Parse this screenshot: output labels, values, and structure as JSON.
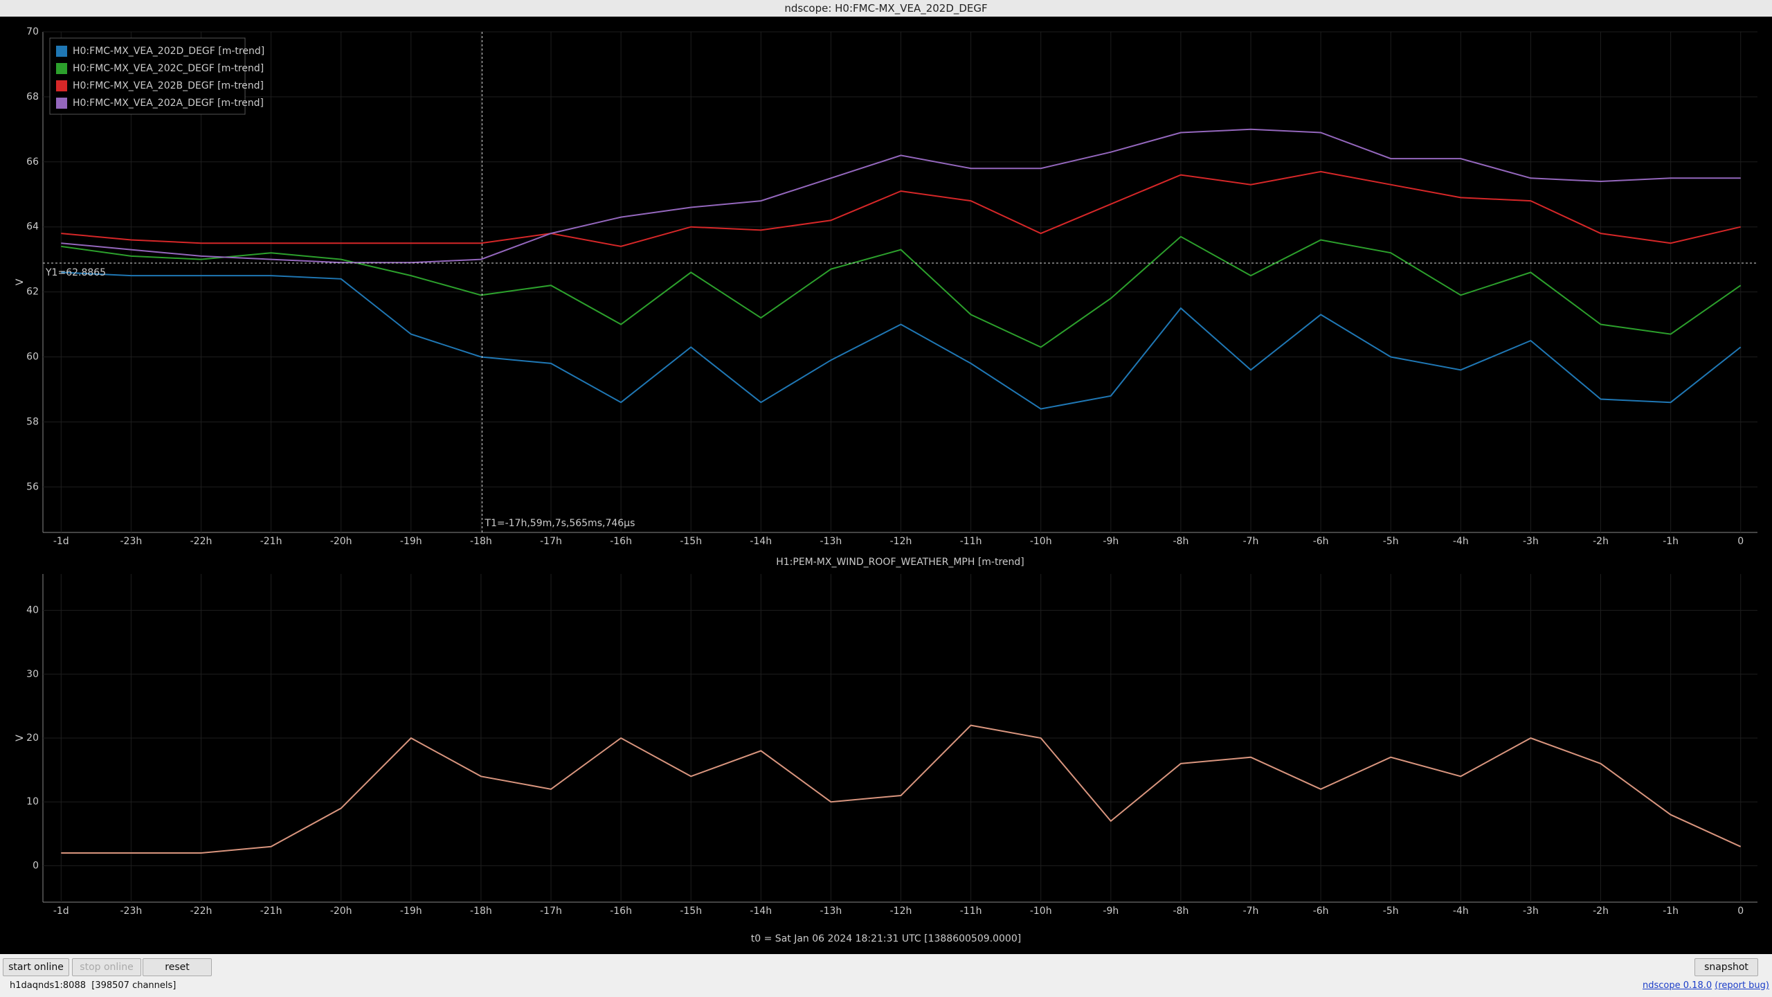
{
  "window_title": "ndscope: H0:FMC-MX_VEA_202D_DEGF",
  "chart_data": [
    {
      "type": "line",
      "ylabel": "V",
      "grid": true,
      "legend": "upper left",
      "x": [
        -24,
        -23,
        -22,
        -21,
        -20,
        -19,
        -18,
        -17,
        -16,
        -15,
        -14,
        -13,
        -12,
        -11,
        -10,
        -9,
        -8,
        -7,
        -6,
        -5,
        -4,
        -3,
        -2,
        -1,
        0
      ],
      "xlim": [
        -24.26,
        0.24
      ],
      "xticks": [
        {
          "value": -24,
          "label": "-1d"
        },
        {
          "value": -23,
          "label": "-23h"
        },
        {
          "value": -22,
          "label": "-22h"
        },
        {
          "value": -21,
          "label": "-21h"
        },
        {
          "value": -20,
          "label": "-20h"
        },
        {
          "value": -19,
          "label": "-19h"
        },
        {
          "value": -18,
          "label": "-18h"
        },
        {
          "value": -17,
          "label": "-17h"
        },
        {
          "value": -16,
          "label": "-16h"
        },
        {
          "value": -15,
          "label": "-15h"
        },
        {
          "value": -14,
          "label": "-14h"
        },
        {
          "value": -13,
          "label": "-13h"
        },
        {
          "value": -12,
          "label": "-12h"
        },
        {
          "value": -11,
          "label": "-11h"
        },
        {
          "value": -10,
          "label": "-10h"
        },
        {
          "value": -9,
          "label": "-9h"
        },
        {
          "value": -8,
          "label": "-8h"
        },
        {
          "value": -7,
          "label": "-7h"
        },
        {
          "value": -6,
          "label": "-6h"
        },
        {
          "value": -5,
          "label": "-5h"
        },
        {
          "value": -4,
          "label": "-4h"
        },
        {
          "value": -3,
          "label": "-3h"
        },
        {
          "value": -2,
          "label": "-2h"
        },
        {
          "value": -1,
          "label": "-1h"
        },
        0
      ],
      "ylim": [
        54.6,
        70
      ],
      "yticks": [
        56,
        58,
        60,
        62,
        64,
        66,
        68,
        70
      ],
      "cursors": {
        "t1": {
          "value": -17.985,
          "label": "T1=-17h,59m,7s,565ms,746μs"
        },
        "y1": {
          "value": 62.8865,
          "label": "Y1=62.8865"
        }
      },
      "series": [
        {
          "name": "H0:FMC-MX_VEA_202D_DEGF [m-trend]",
          "color": "#1f77b4",
          "values": [
            62.6,
            62.5,
            62.5,
            62.5,
            62.4,
            60.7,
            60.0,
            59.8,
            58.6,
            60.3,
            58.6,
            59.9,
            61.0,
            59.8,
            58.4,
            58.8,
            61.5,
            59.6,
            61.3,
            60.0,
            59.6,
            60.5,
            58.7,
            58.6,
            60.3
          ]
        },
        {
          "name": "H0:FMC-MX_VEA_202C_DEGF [m-trend]",
          "color": "#2ca02c",
          "values": [
            63.4,
            63.1,
            63.0,
            63.2,
            63.0,
            62.5,
            61.9,
            62.2,
            61.0,
            62.6,
            61.2,
            62.7,
            63.3,
            61.3,
            60.3,
            61.8,
            63.7,
            62.5,
            63.6,
            63.2,
            61.9,
            62.6,
            61.0,
            60.7,
            62.2
          ]
        },
        {
          "name": "H0:FMC-MX_VEA_202B_DEGF [m-trend]",
          "color": "#d62728",
          "values": [
            63.8,
            63.6,
            63.5,
            63.5,
            63.5,
            63.5,
            63.5,
            63.8,
            63.4,
            64.0,
            63.9,
            64.2,
            65.1,
            64.8,
            63.8,
            64.7,
            65.6,
            65.3,
            65.7,
            65.3,
            64.9,
            64.8,
            63.8,
            63.5,
            64.0
          ]
        },
        {
          "name": "H0:FMC-MX_VEA_202A_DEGF [m-trend]",
          "color": "#9467bd",
          "values": [
            63.5,
            63.3,
            63.1,
            63.0,
            62.9,
            62.9,
            63.0,
            63.8,
            64.3,
            64.6,
            64.8,
            65.5,
            66.2,
            65.8,
            65.8,
            66.3,
            66.9,
            67.0,
            66.9,
            66.1,
            66.1,
            65.5,
            65.4,
            65.5,
            65.5
          ]
        }
      ]
    },
    {
      "type": "line",
      "title": "H1:PEM-MX_WIND_ROOF_WEATHER_MPH [m-trend]",
      "ylabel": "V",
      "grid": true,
      "x": [
        -24,
        -23,
        -22,
        -21,
        -20,
        -19,
        -18,
        -17,
        -16,
        -15,
        -14,
        -13,
        -12,
        -11,
        -10,
        -9,
        -8,
        -7,
        -6,
        -5,
        -4,
        -3,
        -2,
        -1,
        0
      ],
      "xlim": [
        -24.26,
        0.24
      ],
      "xticks": [
        {
          "value": -24,
          "label": "-1d"
        },
        {
          "value": -23,
          "label": "-23h"
        },
        {
          "value": -22,
          "label": "-22h"
        },
        {
          "value": -21,
          "label": "-21h"
        },
        {
          "value": -20,
          "label": "-20h"
        },
        {
          "value": -19,
          "label": "-19h"
        },
        {
          "value": -18,
          "label": "-18h"
        },
        {
          "value": -17,
          "label": "-17h"
        },
        {
          "value": -16,
          "label": "-16h"
        },
        {
          "value": -15,
          "label": "-15h"
        },
        {
          "value": -14,
          "label": "-14h"
        },
        {
          "value": -13,
          "label": "-13h"
        },
        {
          "value": -12,
          "label": "-12h"
        },
        {
          "value": -11,
          "label": "-11h"
        },
        {
          "value": -10,
          "label": "-10h"
        },
        {
          "value": -9,
          "label": "-9h"
        },
        {
          "value": -8,
          "label": "-8h"
        },
        {
          "value": -7,
          "label": "-7h"
        },
        {
          "value": -6,
          "label": "-6h"
        },
        {
          "value": -5,
          "label": "-5h"
        },
        {
          "value": -4,
          "label": "-4h"
        },
        {
          "value": -3,
          "label": "-3h"
        },
        {
          "value": -2,
          "label": "-2h"
        },
        {
          "value": -1,
          "label": "-1h"
        },
        0
      ],
      "ylim": [
        -5.7,
        45.7
      ],
      "yticks": [
        0,
        10,
        20,
        30,
        40
      ],
      "series": [
        {
          "name": "H1:PEM-MX_WIND_ROOF_WEATHER_MPH [m-trend]",
          "color": "#d9957e",
          "values": [
            2,
            2,
            2,
            3,
            9,
            20,
            14,
            12,
            20,
            14,
            18,
            10,
            11,
            22,
            20,
            7,
            16,
            17,
            12,
            17,
            14,
            20,
            16,
            8,
            3
          ]
        }
      ]
    }
  ],
  "footer": "t0 = Sat Jan 06 2024 18:21:31 UTC [1388600509.0000]",
  "buttons": {
    "start": "start online",
    "stop": "stop online",
    "reset": "reset",
    "snapshot": "snapshot"
  },
  "status": "h1daqnds1:8088  [398507 channels]",
  "links": {
    "version": "ndscope 0.18.0",
    "bug": "(report bug)"
  }
}
